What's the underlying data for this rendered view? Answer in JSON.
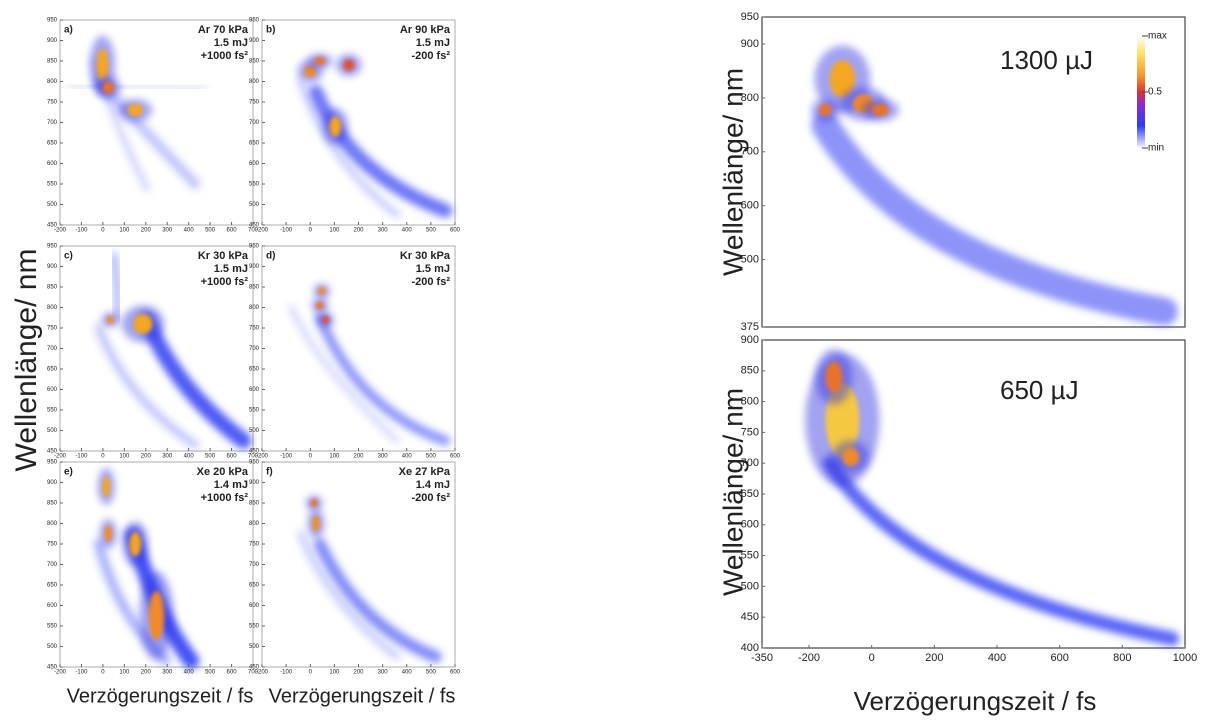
{
  "y_labels": [
    "Wellenlänge/ nm",
    "Wellenlänge/ nm",
    "Wellenlänge/ nm"
  ],
  "x_labels": [
    "Verzögerungszeit / fs",
    "Verzögerungszeit / fs",
    "Verzögerungszeit / fs"
  ],
  "chart_data": [
    {
      "type": "heatmap",
      "panel": "a)",
      "annotation": [
        "Ar 70 kPa",
        "1.5 mJ",
        "+1000 fs²"
      ],
      "xlim": [
        -200,
        700
      ],
      "xticks": [
        -200,
        -100,
        0,
        100,
        200,
        300,
        400,
        500,
        600,
        700
      ],
      "ylim": [
        450,
        950
      ],
      "yticks": [
        450,
        500,
        550,
        600,
        650,
        700,
        750,
        800,
        850,
        900,
        950
      ]
    },
    {
      "type": "heatmap",
      "panel": "b)",
      "annotation": [
        "Ar 90 kPa",
        "1.5 mJ",
        "-200 fs²"
      ],
      "xlim": [
        -200,
        600
      ],
      "xticks": [
        -200,
        -100,
        0,
        100,
        200,
        300,
        400,
        500,
        600
      ],
      "ylim": [
        450,
        950
      ],
      "yticks": [
        450,
        500,
        550,
        600,
        650,
        700,
        750,
        800,
        850,
        900,
        950
      ]
    },
    {
      "type": "heatmap",
      "panel": "c)",
      "annotation": [
        "Kr 30 kPa",
        "1.5 mJ",
        "+1000 fs²"
      ],
      "xlim": [
        -200,
        700
      ],
      "xticks": [
        -200,
        -100,
        0,
        100,
        200,
        300,
        400,
        500,
        600,
        700
      ],
      "ylim": [
        450,
        950
      ],
      "yticks": [
        450,
        500,
        550,
        600,
        650,
        700,
        750,
        800,
        850,
        900,
        950
      ]
    },
    {
      "type": "heatmap",
      "panel": "d)",
      "annotation": [
        "Kr 30 kPa",
        "1.5 mJ",
        "-200 fs²"
      ],
      "xlim": [
        -200,
        600
      ],
      "xticks": [
        -200,
        -100,
        0,
        100,
        200,
        300,
        400,
        500,
        600
      ],
      "ylim": [
        450,
        950
      ],
      "yticks": [
        450,
        500,
        550,
        600,
        650,
        700,
        750,
        800,
        850,
        900,
        950
      ]
    },
    {
      "type": "heatmap",
      "panel": "e)",
      "annotation": [
        "Xe 20 kPa",
        "1.4 mJ",
        "+1000 fs²"
      ],
      "xlim": [
        -200,
        700
      ],
      "xticks": [
        -200,
        -100,
        0,
        100,
        200,
        300,
        400,
        500,
        600,
        700
      ],
      "ylim": [
        450,
        950
      ],
      "yticks": [
        450,
        500,
        550,
        600,
        650,
        700,
        750,
        800,
        850,
        900,
        950
      ]
    },
    {
      "type": "heatmap",
      "panel": "f)",
      "annotation": [
        "Xe 27 kPa",
        "1.4 mJ",
        "-200 fs²"
      ],
      "xlim": [
        -200,
        600
      ],
      "xticks": [
        -200,
        -100,
        0,
        100,
        200,
        300,
        400,
        500,
        600
      ],
      "ylim": [
        450,
        950
      ],
      "yticks": [
        450,
        500,
        550,
        600,
        650,
        700,
        750,
        800,
        850,
        900,
        950
      ]
    },
    {
      "type": "heatmap",
      "annotation": [
        "1300 µJ"
      ],
      "ylim": [
        375,
        950
      ],
      "yticks": [
        375,
        500,
        600,
        700,
        800,
        900,
        950
      ],
      "colorbar_labels": [
        "max",
        0.5,
        "min"
      ]
    },
    {
      "type": "heatmap",
      "annotation": [
        "650 µJ"
      ],
      "xlim": [
        -350,
        1000
      ],
      "xticks": [
        -350,
        -200,
        0,
        200,
        400,
        600,
        800,
        1000
      ],
      "ylim": [
        400,
        900
      ],
      "yticks": [
        400,
        450,
        500,
        550,
        600,
        650,
        700,
        750,
        800,
        850,
        900
      ]
    }
  ]
}
